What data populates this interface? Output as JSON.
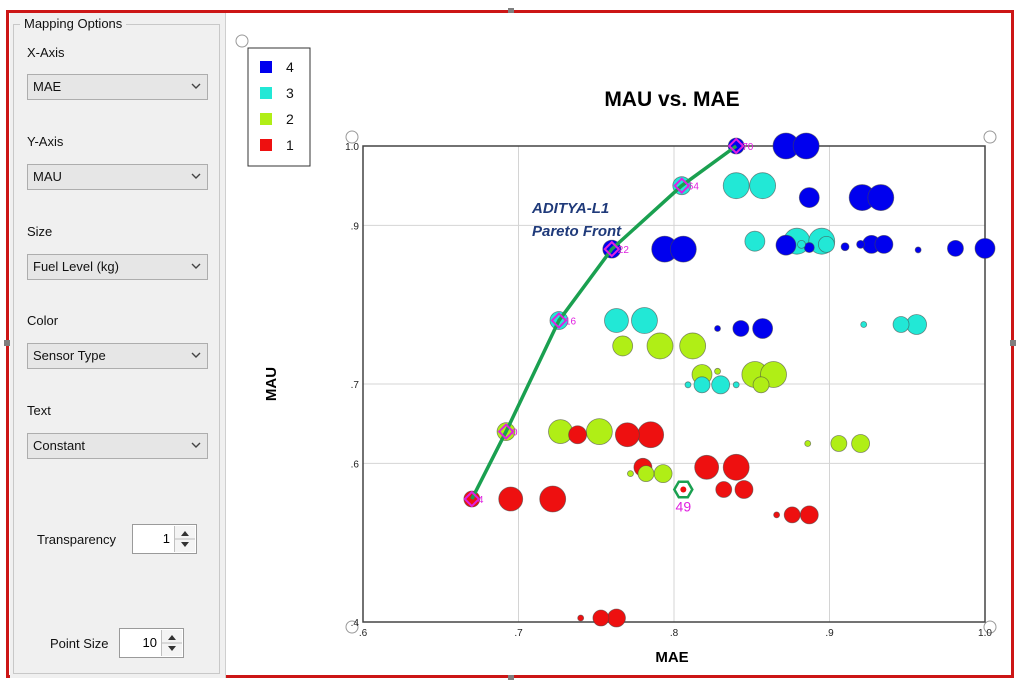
{
  "panel": {
    "group_title": "Mapping Options",
    "x_axis_label": "X-Axis",
    "x_axis_value": "MAE",
    "y_axis_label": "Y-Axis",
    "y_axis_value": "MAU",
    "size_label": "Size",
    "size_value": "Fuel Level (kg)",
    "color_label": "Color",
    "color_value": "Sensor Type",
    "text_label": "Text",
    "text_value": "Constant",
    "transparency_label": "Transparency",
    "transparency_value": "1",
    "point_size_label": "Point Size",
    "point_size_value": "10"
  },
  "colors": {
    "frame": "#cc1616",
    "front_line": "#1aa050",
    "front_marker": "#e020e0",
    "annotation": "#1f3a7a"
  },
  "chart_data": {
    "type": "scatter",
    "title": "MAU vs. MAE",
    "xlabel": "MAE",
    "ylabel": "MAU",
    "xlim": [
      0.6,
      1.0
    ],
    "ylim": [
      0.4,
      1.0
    ],
    "x_ticks": [
      0.6,
      0.7,
      0.8,
      0.9,
      1.0
    ],
    "x_tick_labels": [
      ".6",
      ".7",
      ".8",
      ".9",
      "1.0"
    ],
    "y_ticks": [
      0.4,
      0.6,
      0.7,
      0.9,
      1.0
    ],
    "y_tick_labels": [
      ".4",
      ".6",
      ".7",
      ".9",
      "1.0"
    ],
    "grid": true,
    "legend_position": "top-left",
    "series": [
      {
        "name": "4",
        "color": "#0000ee",
        "points": [
          {
            "x": 0.84,
            "y": 1.0,
            "size": 8
          },
          {
            "x": 0.872,
            "y": 1.0,
            "size": 13
          },
          {
            "x": 0.885,
            "y": 1.0,
            "size": 13
          },
          {
            "x": 0.887,
            "y": 0.935,
            "size": 10
          },
          {
            "x": 0.921,
            "y": 0.935,
            "size": 13
          },
          {
            "x": 0.933,
            "y": 0.935,
            "size": 13
          },
          {
            "x": 0.76,
            "y": 0.87,
            "size": 9
          },
          {
            "x": 0.794,
            "y": 0.87,
            "size": 13
          },
          {
            "x": 0.806,
            "y": 0.87,
            "size": 13
          },
          {
            "x": 0.872,
            "y": 0.875,
            "size": 10
          },
          {
            "x": 0.887,
            "y": 0.872,
            "size": 5
          },
          {
            "x": 0.91,
            "y": 0.873,
            "size": 4
          },
          {
            "x": 0.92,
            "y": 0.876,
            "size": 4
          },
          {
            "x": 0.927,
            "y": 0.876,
            "size": 9
          },
          {
            "x": 0.935,
            "y": 0.876,
            "size": 9
          },
          {
            "x": 0.957,
            "y": 0.869,
            "size": 3
          },
          {
            "x": 0.981,
            "y": 0.871,
            "size": 8
          },
          {
            "x": 1.0,
            "y": 0.871,
            "size": 10
          },
          {
            "x": 0.843,
            "y": 0.77,
            "size": 8
          },
          {
            "x": 0.857,
            "y": 0.77,
            "size": 10
          },
          {
            "x": 0.828,
            "y": 0.77,
            "size": 3
          }
        ]
      },
      {
        "name": "3",
        "color": "#22e8d6",
        "points": [
          {
            "x": 0.805,
            "y": 0.95,
            "size": 9
          },
          {
            "x": 0.84,
            "y": 0.95,
            "size": 13
          },
          {
            "x": 0.857,
            "y": 0.95,
            "size": 13
          },
          {
            "x": 0.726,
            "y": 0.78,
            "size": 9
          },
          {
            "x": 0.763,
            "y": 0.78,
            "size": 12
          },
          {
            "x": 0.781,
            "y": 0.78,
            "size": 13
          },
          {
            "x": 0.852,
            "y": 0.88,
            "size": 10
          },
          {
            "x": 0.879,
            "y": 0.88,
            "size": 13
          },
          {
            "x": 0.895,
            "y": 0.88,
            "size": 13
          },
          {
            "x": 0.898,
            "y": 0.876,
            "size": 8
          },
          {
            "x": 0.922,
            "y": 0.775,
            "size": 3
          },
          {
            "x": 0.946,
            "y": 0.775,
            "size": 8
          },
          {
            "x": 0.956,
            "y": 0.775,
            "size": 10
          },
          {
            "x": 0.809,
            "y": 0.699,
            "size": 3
          },
          {
            "x": 0.818,
            "y": 0.699,
            "size": 8
          },
          {
            "x": 0.83,
            "y": 0.699,
            "size": 9
          },
          {
            "x": 0.882,
            "y": 0.876,
            "size": 4
          },
          {
            "x": 0.84,
            "y": 0.699,
            "size": 3
          }
        ]
      },
      {
        "name": "2",
        "color": "#b0ee16",
        "points": [
          {
            "x": 0.692,
            "y": 0.64,
            "size": 9
          },
          {
            "x": 0.727,
            "y": 0.64,
            "size": 12
          },
          {
            "x": 0.752,
            "y": 0.64,
            "size": 13
          },
          {
            "x": 0.767,
            "y": 0.748,
            "size": 10
          },
          {
            "x": 0.791,
            "y": 0.748,
            "size": 13
          },
          {
            "x": 0.812,
            "y": 0.748,
            "size": 13
          },
          {
            "x": 0.818,
            "y": 0.712,
            "size": 10
          },
          {
            "x": 0.828,
            "y": 0.716,
            "size": 3
          },
          {
            "x": 0.852,
            "y": 0.712,
            "size": 13
          },
          {
            "x": 0.864,
            "y": 0.712,
            "size": 13
          },
          {
            "x": 0.856,
            "y": 0.699,
            "size": 8
          },
          {
            "x": 0.886,
            "y": 0.625,
            "size": 3
          },
          {
            "x": 0.906,
            "y": 0.625,
            "size": 8
          },
          {
            "x": 0.92,
            "y": 0.625,
            "size": 9
          },
          {
            "x": 0.772,
            "y": 0.587,
            "size": 3
          },
          {
            "x": 0.782,
            "y": 0.587,
            "size": 8
          },
          {
            "x": 0.793,
            "y": 0.587,
            "size": 9
          }
        ]
      },
      {
        "name": "1",
        "color": "#ee1010",
        "points": [
          {
            "x": 0.67,
            "y": 0.555,
            "size": 8
          },
          {
            "x": 0.695,
            "y": 0.555,
            "size": 12
          },
          {
            "x": 0.722,
            "y": 0.555,
            "size": 13
          },
          {
            "x": 0.738,
            "y": 0.636,
            "size": 9
          },
          {
            "x": 0.77,
            "y": 0.636,
            "size": 12
          },
          {
            "x": 0.785,
            "y": 0.636,
            "size": 13
          },
          {
            "x": 0.78,
            "y": 0.595,
            "size": 9
          },
          {
            "x": 0.821,
            "y": 0.595,
            "size": 12
          },
          {
            "x": 0.84,
            "y": 0.595,
            "size": 13
          },
          {
            "x": 0.832,
            "y": 0.567,
            "size": 8
          },
          {
            "x": 0.845,
            "y": 0.567,
            "size": 9
          },
          {
            "x": 0.806,
            "y": 0.567,
            "size": 4
          },
          {
            "x": 0.866,
            "y": 0.535,
            "size": 3
          },
          {
            "x": 0.876,
            "y": 0.535,
            "size": 8
          },
          {
            "x": 0.887,
            "y": 0.535,
            "size": 9
          },
          {
            "x": 0.74,
            "y": 0.405,
            "size": 3
          },
          {
            "x": 0.753,
            "y": 0.405,
            "size": 8
          },
          {
            "x": 0.763,
            "y": 0.405,
            "size": 9
          }
        ]
      }
    ],
    "pareto_front": [
      {
        "x": 0.67,
        "y": 0.555,
        "label": "4"
      },
      {
        "x": 0.692,
        "y": 0.64,
        "label": "0"
      },
      {
        "x": 0.726,
        "y": 0.78,
        "label": "16"
      },
      {
        "x": 0.76,
        "y": 0.87,
        "label": "22"
      },
      {
        "x": 0.805,
        "y": 0.95,
        "label": "64"
      },
      {
        "x": 0.84,
        "y": 1.0,
        "label": "70"
      }
    ],
    "highlight": {
      "x": 0.806,
      "y": 0.567,
      "label": "49"
    },
    "annotation": [
      "ADITYA-L1",
      "Pareto Front"
    ]
  }
}
